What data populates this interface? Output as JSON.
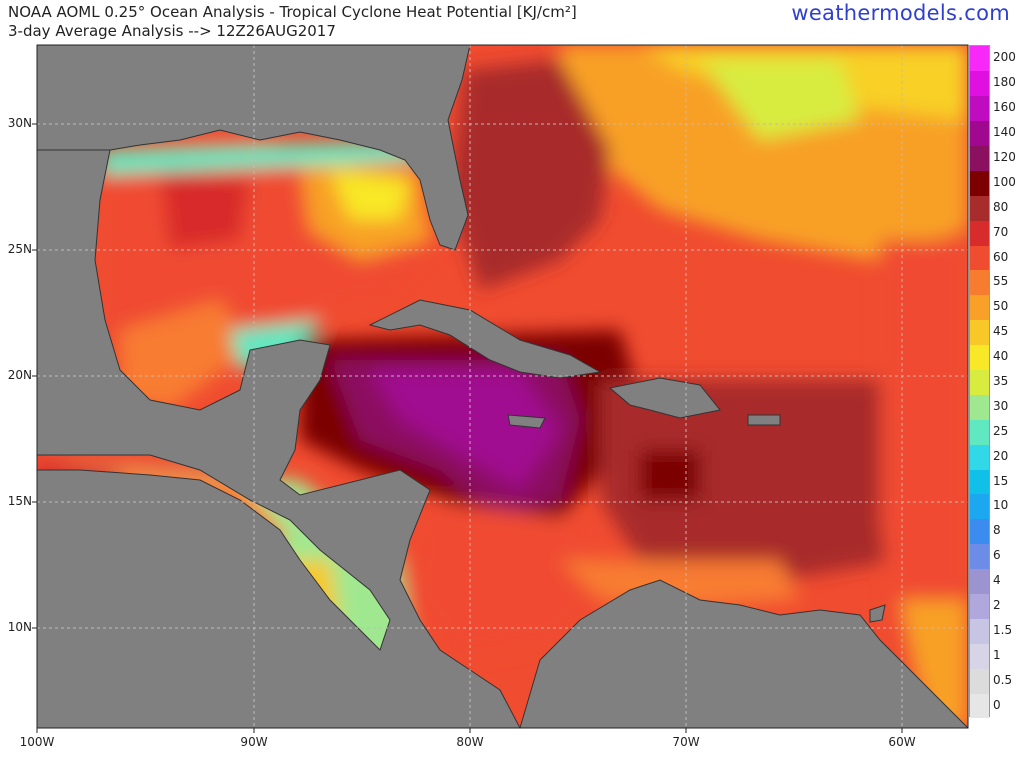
{
  "title": {
    "line1": "NOAA AOML 0.25° Ocean Analysis - Tropical Cyclone Heat Potential [KJ/cm²]",
    "line2": "3-day Average Analysis --> 12Z26AUG2017"
  },
  "brand": "weathermodels.com",
  "map": {
    "lon_range": [
      -100,
      -57
    ],
    "lat_range": [
      6,
      33
    ],
    "lat_ticks": [
      "30N",
      "25N",
      "20N",
      "15N",
      "10N"
    ],
    "lat_values": [
      30,
      25,
      20,
      15,
      10
    ],
    "lon_ticks": [
      "100W",
      "90W",
      "80W",
      "70W",
      "60W"
    ],
    "lon_values": [
      -100,
      -90,
      -80,
      -70,
      -60
    ],
    "land_color": "#808080",
    "grid_color": "#bbbbbb"
  },
  "colorbar": {
    "labels": [
      "0",
      "0.5",
      "1",
      "1.5",
      "2",
      "4",
      "6",
      "8",
      "10",
      "15",
      "20",
      "25",
      "30",
      "35",
      "40",
      "45",
      "50",
      "55",
      "60",
      "70",
      "80",
      "100",
      "120",
      "140",
      "160",
      "180",
      "200"
    ],
    "colors": [
      "#e6e6e6",
      "#dcdcdc",
      "#d8d4e8",
      "#c8c4e4",
      "#b0a8dc",
      "#9c94d0",
      "#6c8ce8",
      "#3c8cf0",
      "#1ca8f0",
      "#10c0e8",
      "#30d8e8",
      "#60e8c0",
      "#a0e890",
      "#d8ec40",
      "#f8e828",
      "#f8c828",
      "#f8a028",
      "#f87c30",
      "#f04c30",
      "#d82c2c",
      "#a82c2c",
      "#7c0000",
      "#8c1060",
      "#a00890",
      "#c00cc0",
      "#e010e0",
      "#f828f8"
    ]
  }
}
